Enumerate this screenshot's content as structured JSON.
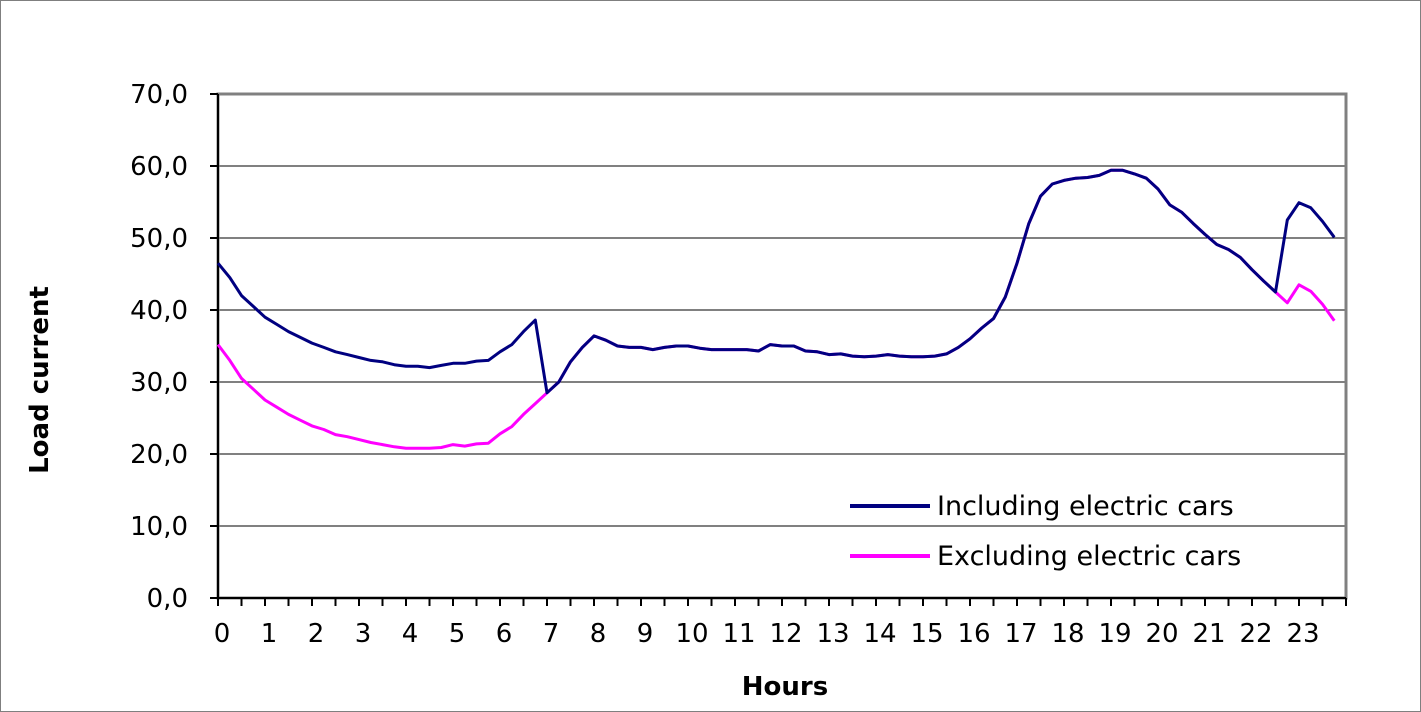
{
  "chart_data": {
    "type": "line",
    "title": "",
    "xlabel": "Hours",
    "ylabel": "Load current",
    "xlim": [
      0,
      24
    ],
    "ylim": [
      0,
      70
    ],
    "x_ticks": [
      "0",
      "1",
      "2",
      "3",
      "4",
      "5",
      "6",
      "7",
      "8",
      "9",
      "10",
      "11",
      "12",
      "13",
      "14",
      "15",
      "16",
      "17",
      "18",
      "19",
      "20",
      "21",
      "22",
      "23"
    ],
    "y_ticks": [
      "0,0",
      "10,0",
      "20,0",
      "30,0",
      "40,0",
      "50,0",
      "60,0",
      "70,0"
    ],
    "grid": "horizontal",
    "legend_position": "bottom-right",
    "series": [
      {
        "name": "Including electric cars",
        "color": "#000080",
        "points": [
          [
            0.0,
            46.5
          ],
          [
            0.25,
            44.5
          ],
          [
            0.5,
            42.0
          ],
          [
            0.75,
            40.5
          ],
          [
            1.0,
            39.0
          ],
          [
            1.25,
            38.0
          ],
          [
            1.5,
            37.0
          ],
          [
            1.75,
            36.2
          ],
          [
            2.0,
            35.4
          ],
          [
            2.25,
            34.8
          ],
          [
            2.5,
            34.2
          ],
          [
            2.75,
            33.8
          ],
          [
            3.0,
            33.4
          ],
          [
            3.25,
            33.0
          ],
          [
            3.5,
            32.8
          ],
          [
            3.75,
            32.4
          ],
          [
            4.0,
            32.2
          ],
          [
            4.25,
            32.2
          ],
          [
            4.5,
            32.0
          ],
          [
            4.75,
            32.3
          ],
          [
            5.0,
            32.6
          ],
          [
            5.25,
            32.6
          ],
          [
            5.5,
            32.9
          ],
          [
            5.75,
            33.0
          ],
          [
            6.0,
            34.2
          ],
          [
            6.25,
            35.2
          ],
          [
            6.5,
            37.0
          ],
          [
            6.75,
            38.6
          ],
          [
            7.0,
            28.5
          ],
          [
            7.25,
            30.0
          ],
          [
            7.5,
            32.8
          ],
          [
            7.75,
            34.8
          ],
          [
            8.0,
            36.4
          ],
          [
            8.25,
            35.8
          ],
          [
            8.5,
            35.0
          ],
          [
            8.75,
            34.8
          ],
          [
            9.0,
            34.8
          ],
          [
            9.25,
            34.5
          ],
          [
            9.5,
            34.8
          ],
          [
            9.75,
            35.0
          ],
          [
            10.0,
            35.0
          ],
          [
            10.25,
            34.7
          ],
          [
            10.5,
            34.5
          ],
          [
            10.75,
            34.5
          ],
          [
            11.0,
            34.5
          ],
          [
            11.25,
            34.5
          ],
          [
            11.5,
            34.3
          ],
          [
            11.75,
            35.2
          ],
          [
            12.0,
            35.0
          ],
          [
            12.25,
            35.0
          ],
          [
            12.5,
            34.3
          ],
          [
            12.75,
            34.2
          ],
          [
            13.0,
            33.8
          ],
          [
            13.25,
            33.9
          ],
          [
            13.5,
            33.6
          ],
          [
            13.75,
            33.5
          ],
          [
            14.0,
            33.6
          ],
          [
            14.25,
            33.8
          ],
          [
            14.5,
            33.6
          ],
          [
            14.75,
            33.5
          ],
          [
            15.0,
            33.5
          ],
          [
            15.25,
            33.6
          ],
          [
            15.5,
            33.9
          ],
          [
            15.75,
            34.8
          ],
          [
            16.0,
            36.0
          ],
          [
            16.25,
            37.5
          ],
          [
            16.5,
            38.8
          ],
          [
            16.75,
            41.8
          ],
          [
            17.0,
            46.5
          ],
          [
            17.25,
            52.0
          ],
          [
            17.5,
            55.8
          ],
          [
            17.75,
            57.5
          ],
          [
            18.0,
            58.0
          ],
          [
            18.25,
            58.3
          ],
          [
            18.5,
            58.4
          ],
          [
            18.75,
            58.7
          ],
          [
            19.0,
            59.4
          ],
          [
            19.25,
            59.4
          ],
          [
            19.5,
            58.9
          ],
          [
            19.75,
            58.3
          ],
          [
            20.0,
            56.8
          ],
          [
            20.25,
            54.6
          ],
          [
            20.5,
            53.6
          ],
          [
            20.75,
            52.0
          ],
          [
            21.0,
            50.5
          ],
          [
            21.25,
            49.1
          ],
          [
            21.5,
            48.4
          ],
          [
            21.75,
            47.3
          ],
          [
            22.0,
            45.6
          ],
          [
            22.25,
            44.0
          ],
          [
            22.5,
            42.5
          ],
          [
            22.75,
            52.5
          ],
          [
            23.0,
            54.9
          ],
          [
            23.25,
            54.2
          ],
          [
            23.5,
            52.3
          ],
          [
            23.75,
            50.1
          ]
        ]
      },
      {
        "name": "Excluding electric cars",
        "color": "#ff00ff",
        "points": [
          [
            0.0,
            35.2
          ],
          [
            0.25,
            33.0
          ],
          [
            0.5,
            30.5
          ],
          [
            0.75,
            29.0
          ],
          [
            1.0,
            27.5
          ],
          [
            1.25,
            26.5
          ],
          [
            1.5,
            25.5
          ],
          [
            1.75,
            24.7
          ],
          [
            2.0,
            23.9
          ],
          [
            2.25,
            23.4
          ],
          [
            2.5,
            22.7
          ],
          [
            2.75,
            22.4
          ],
          [
            3.0,
            22.0
          ],
          [
            3.25,
            21.6
          ],
          [
            3.5,
            21.3
          ],
          [
            3.75,
            21.0
          ],
          [
            4.0,
            20.8
          ],
          [
            4.25,
            20.8
          ],
          [
            4.5,
            20.8
          ],
          [
            4.75,
            20.9
          ],
          [
            5.0,
            21.3
          ],
          [
            5.25,
            21.1
          ],
          [
            5.5,
            21.4
          ],
          [
            5.75,
            21.5
          ],
          [
            6.0,
            22.8
          ],
          [
            6.25,
            23.8
          ],
          [
            6.5,
            25.5
          ],
          [
            6.75,
            27.0
          ],
          [
            7.0,
            28.5
          ],
          [
            7.25,
            30.0
          ],
          [
            7.5,
            32.8
          ],
          [
            7.75,
            34.8
          ],
          [
            8.0,
            36.4
          ],
          [
            8.25,
            35.8
          ],
          [
            8.5,
            35.0
          ],
          [
            8.75,
            34.8
          ],
          [
            9.0,
            34.8
          ],
          [
            9.25,
            34.5
          ],
          [
            9.5,
            34.8
          ],
          [
            9.75,
            35.0
          ],
          [
            10.0,
            35.0
          ],
          [
            10.25,
            34.7
          ],
          [
            10.5,
            34.5
          ],
          [
            10.75,
            34.5
          ],
          [
            11.0,
            34.5
          ],
          [
            11.25,
            34.5
          ],
          [
            11.5,
            34.3
          ],
          [
            11.75,
            35.2
          ],
          [
            12.0,
            35.0
          ],
          [
            12.25,
            35.0
          ],
          [
            12.5,
            34.3
          ],
          [
            12.75,
            34.2
          ],
          [
            13.0,
            33.8
          ],
          [
            13.25,
            33.9
          ],
          [
            13.5,
            33.6
          ],
          [
            13.75,
            33.5
          ],
          [
            14.0,
            33.6
          ],
          [
            14.25,
            33.8
          ],
          [
            14.5,
            33.6
          ],
          [
            14.75,
            33.5
          ],
          [
            15.0,
            33.5
          ],
          [
            15.25,
            33.6
          ],
          [
            15.5,
            33.9
          ],
          [
            15.75,
            34.8
          ],
          [
            16.0,
            36.0
          ],
          [
            16.25,
            37.5
          ],
          [
            16.5,
            38.8
          ],
          [
            16.75,
            41.8
          ],
          [
            17.0,
            46.5
          ],
          [
            17.25,
            52.0
          ],
          [
            17.5,
            55.8
          ],
          [
            17.75,
            57.5
          ],
          [
            18.0,
            58.0
          ],
          [
            18.25,
            58.3
          ],
          [
            18.5,
            58.4
          ],
          [
            18.75,
            58.7
          ],
          [
            19.0,
            59.4
          ],
          [
            19.25,
            59.4
          ],
          [
            19.5,
            58.9
          ],
          [
            19.75,
            58.3
          ],
          [
            20.0,
            56.8
          ],
          [
            20.25,
            54.6
          ],
          [
            20.5,
            53.6
          ],
          [
            20.75,
            52.0
          ],
          [
            21.0,
            50.5
          ],
          [
            21.25,
            49.1
          ],
          [
            21.5,
            48.4
          ],
          [
            21.75,
            47.3
          ],
          [
            22.0,
            45.6
          ],
          [
            22.25,
            44.0
          ],
          [
            22.5,
            42.5
          ],
          [
            22.75,
            41.0
          ],
          [
            23.0,
            43.5
          ],
          [
            23.25,
            42.6
          ],
          [
            23.5,
            40.8
          ],
          [
            23.75,
            38.5
          ]
        ]
      }
    ]
  }
}
